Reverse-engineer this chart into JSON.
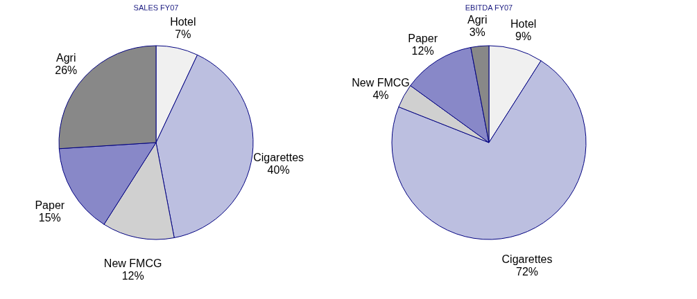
{
  "chart_data": [
    {
      "type": "pie",
      "title": "SALES FY07",
      "categories": [
        "Hotel",
        "Cigarettes",
        "New FMCG",
        "Paper",
        "Agri"
      ],
      "values": [
        7,
        40,
        12,
        15,
        26
      ],
      "value_labels": [
        "7%",
        "40%",
        "12%",
        "15%",
        "26%"
      ],
      "colors": [
        "#f0f0f0",
        "#bcbfe0",
        "#d0d0d0",
        "#8888c8",
        "#888888"
      ],
      "legend": false
    },
    {
      "type": "pie",
      "title": "EBITDA FY07",
      "categories": [
        "Hotel",
        "Cigarettes",
        "New FMCG",
        "Paper",
        "Agri"
      ],
      "values": [
        9,
        72,
        4,
        12,
        3
      ],
      "value_labels": [
        "9%",
        "72%",
        "4%",
        "12%",
        "3%"
      ],
      "colors": [
        "#f0f0f0",
        "#bcbfe0",
        "#d0d0d0",
        "#8888c8",
        "#888888"
      ],
      "legend": false
    }
  ]
}
